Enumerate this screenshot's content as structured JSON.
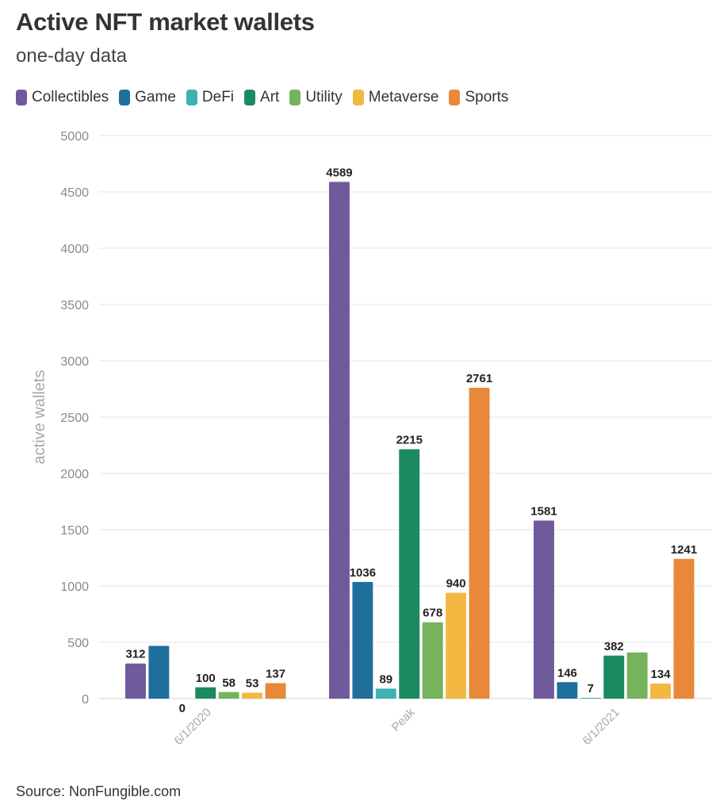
{
  "title": "Active NFT market wallets",
  "subtitle": "one-day data",
  "source": "Source: NonFungible.com",
  "chart_data": {
    "type": "bar",
    "title": "Active NFT market wallets",
    "subtitle": "one-day data",
    "ylabel": "active wallets",
    "xlabel": "",
    "ylim": [
      0,
      5000
    ],
    "yticks": [
      0,
      500,
      1000,
      1500,
      2000,
      2500,
      3000,
      3500,
      4000,
      4500,
      5000
    ],
    "categories": [
      "6/1/2020",
      "Peak",
      "6/1/2021"
    ],
    "grid": true,
    "legend_position": "top",
    "series": [
      {
        "name": "Collectibles",
        "color": "#6f5a9b",
        "values": [
          312,
          4589,
          1581
        ],
        "labels": [
          "312",
          "4589",
          "1581"
        ]
      },
      {
        "name": "Game",
        "color": "#1f6f9d",
        "values": [
          468,
          1036,
          146
        ],
        "labels": [
          "",
          "1036",
          "146"
        ]
      },
      {
        "name": "DeFi",
        "color": "#3bb3b3",
        "values": [
          0,
          89,
          7
        ],
        "labels": [
          "0",
          "89",
          "7"
        ]
      },
      {
        "name": "Art",
        "color": "#1b8a5e",
        "values": [
          100,
          2215,
          382
        ],
        "labels": [
          "100",
          "2215",
          "382"
        ]
      },
      {
        "name": "Utility",
        "color": "#76b35c",
        "values": [
          58,
          678,
          410
        ],
        "labels": [
          "58",
          "678",
          ""
        ]
      },
      {
        "name": "Metaverse",
        "color": "#f3b842",
        "values": [
          53,
          940,
          134
        ],
        "labels": [
          "53",
          "940",
          "134"
        ]
      },
      {
        "name": "Sports",
        "color": "#e8883b",
        "values": [
          137,
          2761,
          1241
        ],
        "labels": [
          "137",
          "2761",
          "1241"
        ]
      }
    ]
  }
}
